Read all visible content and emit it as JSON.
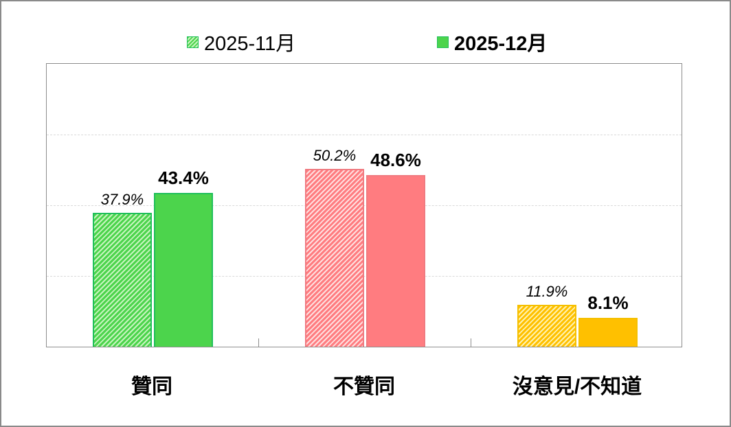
{
  "chart_data": {
    "type": "bar",
    "title": "",
    "xlabel": "",
    "ylabel": "",
    "ylim": [
      0,
      80
    ],
    "grid": true,
    "legend_position": "top",
    "categories": [
      "贊同",
      "不贊同",
      "沒意見/不知道"
    ],
    "series": [
      {
        "name": "2025-11月",
        "style": "hatched",
        "values": [
          37.9,
          50.2,
          11.9
        ],
        "labels": [
          "37.9%",
          "50.2%",
          "11.9%"
        ]
      },
      {
        "name": "2025-12月",
        "style": "solid",
        "values": [
          43.4,
          48.6,
          8.1
        ],
        "labels": [
          "43.4%",
          "48.6%",
          "8.1%"
        ]
      }
    ],
    "colors": {
      "贊同": {
        "fill": "#4cd44c",
        "border": "#1fbf5a",
        "hatch_light": "#c8f5c0"
      },
      "不贊同": {
        "fill": "#ff7c80",
        "border": "#f07a80",
        "hatch_light": "#ffe0e0"
      },
      "沒意見/不知道": {
        "fill": "#ffc000",
        "border": "#f5c000",
        "hatch_light": "#fff3b0"
      }
    }
  },
  "legend": {
    "items": [
      {
        "label": "2025-11月",
        "swatch": "hatched-green"
      },
      {
        "label": "2025-12月",
        "swatch": "solid-green"
      }
    ]
  }
}
